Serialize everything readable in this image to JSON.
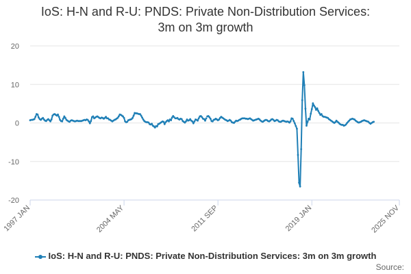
{
  "chart_data": {
    "type": "line",
    "title_line1": "IoS: H-N and R-U: PNDS: Private Non-Distribution Services:",
    "title_line2": "3m on 3m growth",
    "x_tick_labels": [
      "1997 JAN",
      "2004 MAY",
      "2011 SEP",
      "2019 JAN",
      "2025 NOV"
    ],
    "y_ticks": [
      20,
      10,
      0,
      -10,
      -20
    ],
    "ylim": [
      -20,
      20
    ],
    "grid": true,
    "legend_position": "bottom",
    "source_label": "Source:",
    "colors": {
      "series": "#1f7fb6",
      "grid": "#e6e6e6",
      "axis": "#ccd6eb"
    },
    "series": [
      {
        "name": "IoS: H-N and R-U: PNDS: Private Non-Distribution Services: 3m on 3m growth",
        "x_start": "1997 JAN",
        "x_end": "2025 NOV",
        "gaps": [
          "2008-04",
          "2008-05",
          "2010-11",
          "2012-06",
          "2016-03"
        ],
        "values": [
          0.7,
          0.8,
          0.8,
          0.9,
          1.0,
          1.6,
          2.3,
          2.2,
          1.4,
          1.0,
          0.8,
          1.1,
          1.3,
          0.9,
          0.6,
          0.5,
          0.8,
          1.0,
          0.7,
          0.4,
          0.9,
          1.9,
          2.2,
          2.3,
          2.1,
          1.9,
          2.2,
          1.6,
          0.8,
          0.5,
          0.4,
          1.1,
          1.7,
          1.3,
          0.8,
          0.6,
          0.4,
          0.3,
          0.6,
          0.7,
          0.6,
          0.5,
          0.4,
          0.5,
          0.6,
          0.5,
          0.5,
          0.5,
          0.5,
          0.6,
          0.7,
          0.8,
          0.7,
          0.9,
          0.8,
          0.4,
          -0.1,
          0.5,
          1.5,
          1.7,
          1.2,
          1.4,
          1.6,
          1.7,
          1.5,
          1.3,
          1.2,
          1.4,
          1.3,
          1.1,
          1.3,
          1.6,
          1.2,
          1.2,
          0.9,
          0.8,
          0.6,
          0.4,
          0.6,
          0.8,
          0.9,
          1.1,
          1.3,
          1.7,
          2.2,
          2.1,
          1.9,
          1.7,
          1.3,
          0.4,
          0.2,
          0.3,
          0.7,
          0.8,
          0.9,
          1.0,
          1.3,
          1.9,
          2.6,
          2.5,
          2.5,
          2.4,
          2.3,
          2.3,
          1.9,
          1.4,
          0.9,
          0.5,
          0.3,
          0.2,
          0.2,
          0.1,
          -0.3,
          -0.4,
          -0.2,
          -0.7,
          -0.9,
          -1.2,
          -0.8,
          -0.9,
          -0.3,
          -0.2,
          0.0,
          0.2,
          0.4,
          0.3,
          -0.3,
          0.2,
          0.5,
          0.7,
          0.4,
          0.9,
          0.7,
          1.4,
          1.8,
          1.5,
          1.2,
          1.2,
          1.3,
          1.0,
          0.9,
          1.1,
          1.0,
          0.5,
          0.3,
          0.1,
          0.4,
          0.9,
          0.6,
          0.7,
          1.0,
          0.6,
          0.4,
          -0.1,
          0.4,
          0.9,
          0.8,
          0.6,
          1.2,
          1.7,
          1.8,
          1.5,
          1.1,
          1.0,
          0.6,
          1.2,
          1.7,
          1.8,
          1.5,
          1.1,
          0.5,
          0.4,
          0.8,
          0.9,
          1.1,
          0.9,
          0.7,
          0.9,
          1.3,
          1.6,
          1.4,
          1.2,
          1.0,
          0.8,
          0.7,
          0.5,
          0.6,
          0.8,
          0.6,
          0.2,
          0.1,
          0.0,
          0.3,
          0.6,
          0.5,
          0.6,
          0.8,
          0.9,
          1.1,
          1.2,
          1.2,
          1.2,
          1.1,
          1.1,
          1.0,
          1.1,
          1.2,
          1.0,
          0.8,
          0.6,
          0.7,
          0.8,
          0.9,
          1.0,
          1.1,
          0.9,
          0.6,
          0.4,
          0.3,
          0.5,
          0.7,
          0.8,
          0.7,
          0.5,
          0.4,
          0.6,
          0.9,
          1.0,
          0.8,
          0.5,
          0.6,
          0.8,
          0.7,
          0.4,
          0.3,
          0.3,
          0.5,
          0.6,
          0.5,
          0.4,
          0.3,
          0.4,
          0.3,
          0.1,
          0.4,
          1.2,
          1.1,
          0.5,
          -0.1,
          -0.8,
          -1.5,
          -8.3,
          -15.5,
          -16.5,
          -6.8,
          5.9,
          13.2,
          9.8,
          3.7,
          -0.7,
          0.3,
          1.1,
          0.9,
          2.4,
          3.6,
          5.1,
          4.5,
          4.1,
          3.4,
          3.8,
          3.1,
          2.6,
          2.1,
          2.3,
          1.8,
          1.6,
          1.6,
          1.5,
          1.4,
          1.3,
          1.0,
          0.8,
          0.6,
          0.4,
          0.2,
          0.0,
          0.2,
          0.6,
          0.3,
          0.1,
          -0.2,
          -0.4,
          -0.5,
          -0.5,
          -0.7,
          -0.6,
          -0.4,
          0.0,
          0.3,
          0.6,
          0.9,
          1.0,
          1.1,
          1.0,
          0.9,
          0.6,
          0.4,
          0.2,
          0.1,
          0.2,
          0.3,
          0.5,
          0.6,
          0.7,
          0.6,
          0.5,
          0.4,
          0.3,
          0.0,
          -0.2,
          0.0,
          0.2,
          0.3
        ]
      }
    ]
  }
}
